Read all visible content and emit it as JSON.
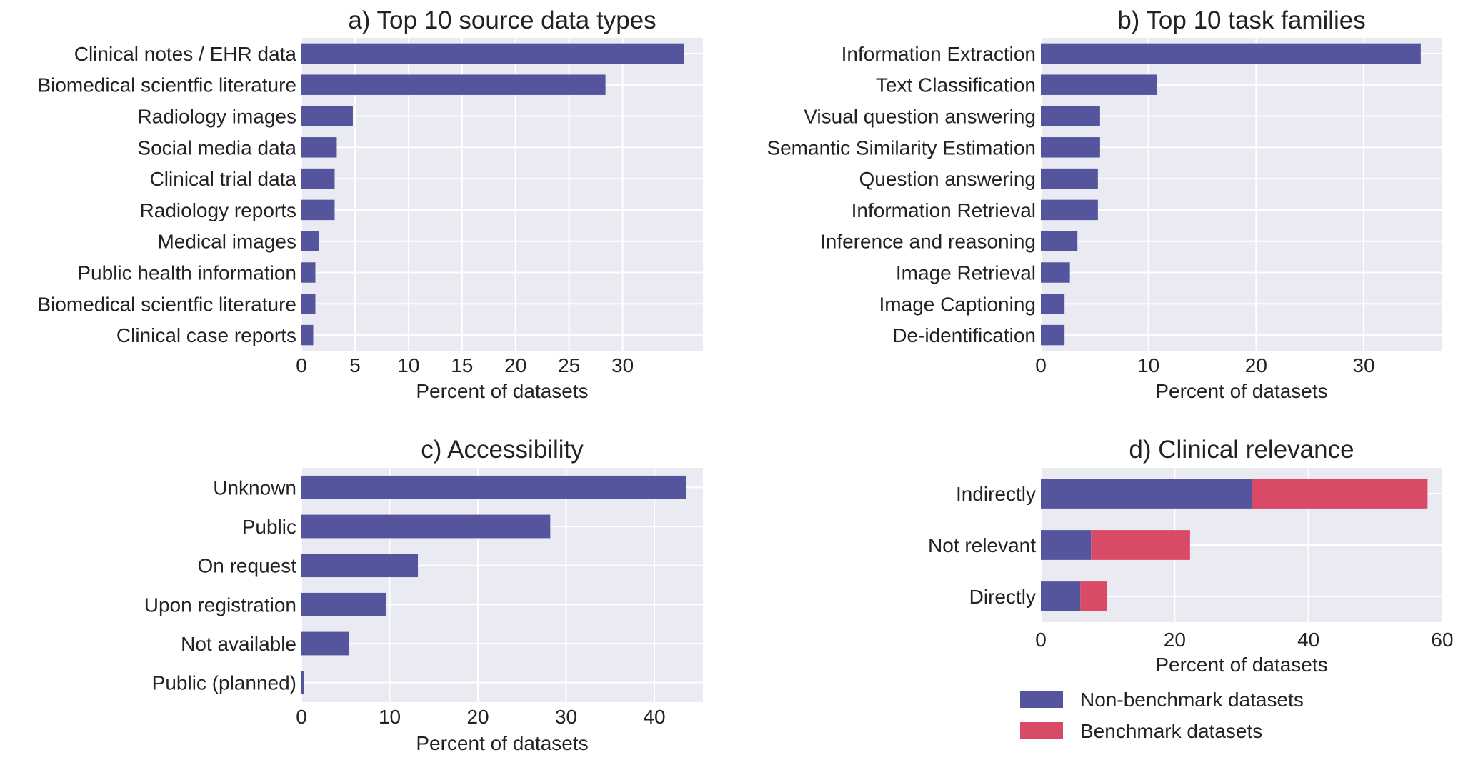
{
  "colors": {
    "panel_bg": "#eaeaf2",
    "grid": "#ffffff",
    "series_primary": "#55559e",
    "series_secondary": "#d94a66"
  },
  "chart_data": [
    {
      "id": "a",
      "type": "bar",
      "orientation": "horizontal",
      "title": "a) Top 10 source data types",
      "categories": [
        "Clinical notes / EHR data",
        "Biomedical scientfic literature",
        "Radiology images",
        "Social media data",
        "Clinical trial data",
        "Radiology reports",
        "Medical images",
        "Public health information",
        "Biomedical scientfic literature",
        "Clinical case reports"
      ],
      "values": [
        35.7,
        28.4,
        4.8,
        3.3,
        3.1,
        3.1,
        1.6,
        1.3,
        1.3,
        1.1
      ],
      "xlabel": "Percent of datasets",
      "xlim": [
        0,
        37.5
      ],
      "xticks": [
        0,
        5,
        10,
        15,
        20,
        25,
        30
      ],
      "grid": true
    },
    {
      "id": "b",
      "type": "bar",
      "orientation": "horizontal",
      "title": "b) Top 10 task families",
      "categories": [
        "Information Extraction",
        "Text Classification",
        "Visual question answering",
        "Semantic Similarity Estimation",
        "Question answering",
        "Information Retrieval",
        "Inference and reasoning",
        "Image Retrieval",
        "Image Captioning",
        "De-identification"
      ],
      "values": [
        35.3,
        10.8,
        5.5,
        5.5,
        5.3,
        5.3,
        3.4,
        2.7,
        2.2,
        2.2
      ],
      "xlabel": "Percent of datasets",
      "xlim": [
        0,
        37.3
      ],
      "xticks": [
        0,
        10,
        20,
        30
      ],
      "grid": true
    },
    {
      "id": "c",
      "type": "bar",
      "orientation": "horizontal",
      "title": "c) Accessibility",
      "categories": [
        "Unknown",
        "Public",
        "On request",
        "Upon registration",
        "Not available",
        "Public (planned)"
      ],
      "values": [
        43.6,
        28.2,
        13.2,
        9.6,
        5.4,
        0.3
      ],
      "xlabel": "Percent of datasets",
      "xlim": [
        0,
        45.5
      ],
      "xticks": [
        0,
        10,
        20,
        30,
        40
      ],
      "grid": true
    },
    {
      "id": "d",
      "type": "bar",
      "orientation": "horizontal",
      "stacked": true,
      "title": "d) Clinical relevance",
      "categories": [
        "Indirectly",
        "Not relevant",
        "Directly"
      ],
      "series": [
        {
          "name": "Non-benchmark datasets",
          "values": [
            31.5,
            7.5,
            5.9
          ]
        },
        {
          "name": "Benchmark datasets",
          "values": [
            26.3,
            14.8,
            4.0
          ]
        }
      ],
      "xlabel": "Percent of datasets",
      "xlim": [
        0,
        60
      ],
      "xticks": [
        0,
        20,
        40,
        60
      ],
      "legend": "bottom",
      "grid": true
    }
  ]
}
